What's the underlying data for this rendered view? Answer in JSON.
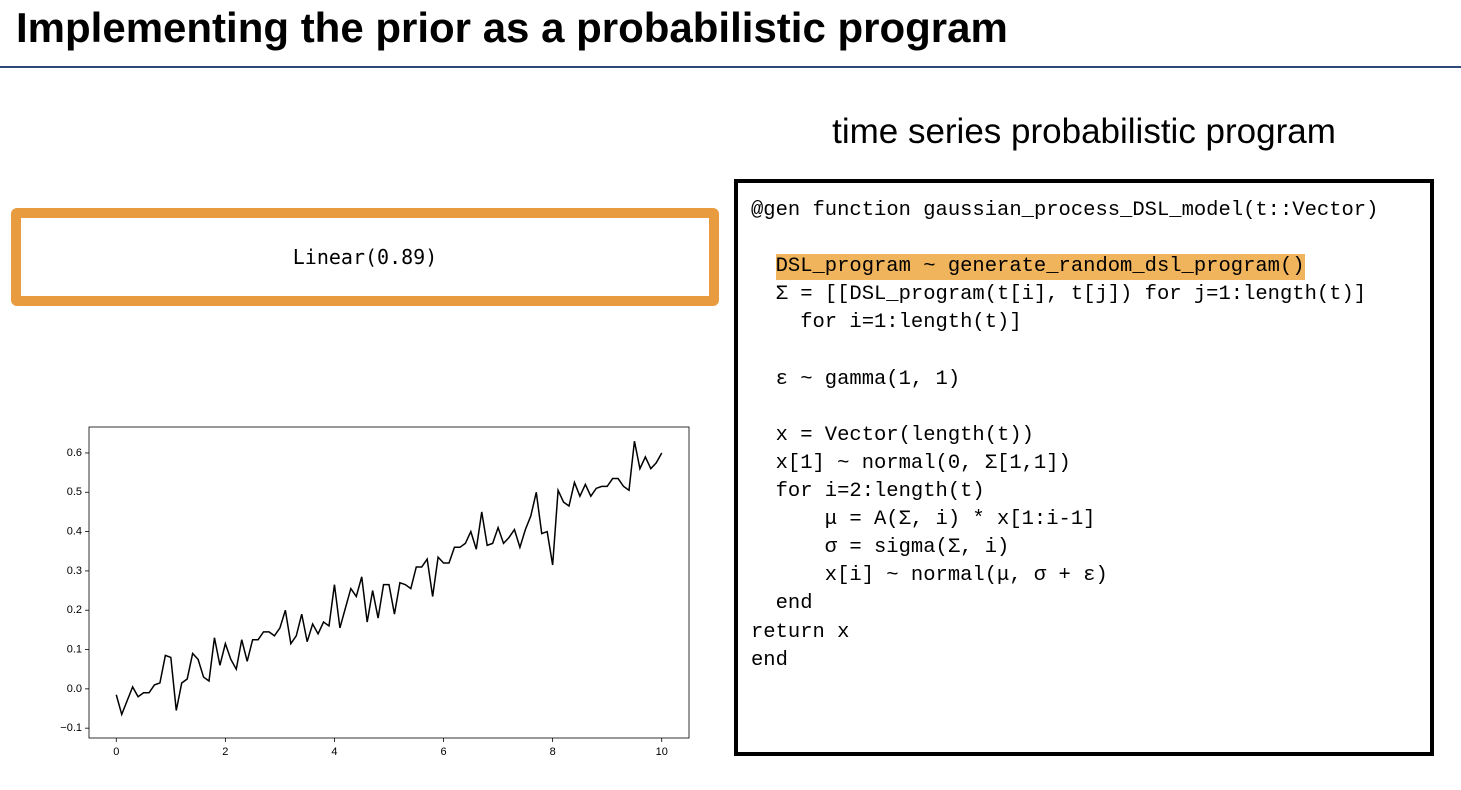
{
  "header": {
    "title": "Implementing the prior as a probabilistic program"
  },
  "sample_program": {
    "label": "Linear(0.89)"
  },
  "code": {
    "title": "time series probabilistic program",
    "blocks": [
      [
        "@gen function gaussian_process_DSL_model(t::Vector)"
      ],
      [
        "DSL_program ~ generate_random_dsl_program()",
        "Σ = [[DSL_program(t[i], t[j]) for j=1:length(t)]",
        "for i=1:length(t)]"
      ],
      [
        "ε ~ gamma(1, 1)"
      ],
      [
        "x = Vector(length(t))",
        "x[1] ~ normal(0, Σ[1,1])",
        "for i=2:length(t)",
        "μ = A(Σ, i) * x[1:i-1]",
        "σ = sigma(Σ, i)",
        "x[i] ~ normal(μ, σ + ε)",
        "end",
        "return x",
        "end"
      ]
    ]
  },
  "chart_data": {
    "type": "line",
    "x": [
      0,
      0.1,
      0.2,
      0.3,
      0.4,
      0.5,
      0.6,
      0.7,
      0.8,
      0.9,
      1,
      1.1,
      1.2,
      1.3,
      1.4,
      1.5,
      1.6,
      1.7,
      1.8,
      1.9,
      2,
      2.1,
      2.2,
      2.3,
      2.4,
      2.5,
      2.6,
      2.7,
      2.8,
      2.9,
      3,
      3.1,
      3.2,
      3.3,
      3.4,
      3.5,
      3.6,
      3.7,
      3.8,
      3.9,
      4,
      4.1,
      4.2,
      4.3,
      4.4,
      4.5,
      4.6,
      4.7,
      4.8,
      4.9,
      5,
      5.1,
      5.2,
      5.3,
      5.4,
      5.5,
      5.6,
      5.7,
      5.8,
      5.9,
      6,
      6.1,
      6.2,
      6.3,
      6.4,
      6.5,
      6.6,
      6.7,
      6.8,
      6.9,
      7,
      7.1,
      7.2,
      7.3,
      7.4,
      7.5,
      7.6,
      7.7,
      7.8,
      7.9,
      8,
      8.1,
      8.2,
      8.3,
      8.4,
      8.5,
      8.6,
      8.7,
      8.8,
      8.9,
      9,
      9.1,
      9.2,
      9.3,
      9.4,
      9.5,
      9.6,
      9.7,
      9.8,
      9.9,
      10
    ],
    "series": [
      {
        "color": "#000000",
        "values": [
          -0.015,
          -0.065,
          -0.03,
          0.005,
          -0.02,
          -0.01,
          -0.01,
          0.01,
          0.015,
          0.085,
          0.08,
          -0.055,
          0.015,
          0.025,
          0.09,
          0.075,
          0.03,
          0.02,
          0.13,
          0.06,
          0.115,
          0.075,
          0.05,
          0.125,
          0.07,
          0.125,
          0.125,
          0.145,
          0.145,
          0.135,
          0.155,
          0.2,
          0.115,
          0.135,
          0.19,
          0.12,
          0.165,
          0.14,
          0.17,
          0.16,
          0.265,
          0.155,
          0.205,
          0.255,
          0.235,
          0.285,
          0.17,
          0.25,
          0.18,
          0.265,
          0.265,
          0.19,
          0.27,
          0.265,
          0.255,
          0.31,
          0.31,
          0.33,
          0.235,
          0.335,
          0.32,
          0.32,
          0.36,
          0.36,
          0.37,
          0.4,
          0.355,
          0.45,
          0.365,
          0.37,
          0.41,
          0.37,
          0.385,
          0.405,
          0.36,
          0.405,
          0.44,
          0.5,
          0.395,
          0.4,
          0.315,
          0.505,
          0.475,
          0.465,
          0.525,
          0.49,
          0.52,
          0.49,
          0.51,
          0.515,
          0.515,
          0.535,
          0.535,
          0.515,
          0.505,
          0.63,
          0.56,
          0.59,
          0.56,
          0.575,
          0.6
        ]
      }
    ],
    "xlim": [
      -0.5,
      10.5
    ],
    "xticks": [
      0,
      2,
      4,
      6,
      8,
      10
    ],
    "ylim": [
      -0.125,
      0.666
    ],
    "yticks": [
      {
        "value": -0.1,
        "label": "−0.1"
      },
      {
        "value": 0,
        "label": "0.0"
      },
      0.1,
      0.2,
      0.3,
      0.4,
      0.5,
      0.6
    ]
  }
}
